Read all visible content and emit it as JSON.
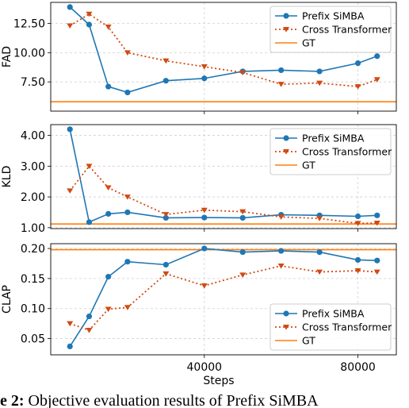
{
  "chart_data": {
    "type": "line",
    "x_label": "Steps",
    "x_ticks": [
      40000,
      80000
    ],
    "x_tick_labels": [
      "40000",
      "80000"
    ],
    "x_range": [
      0,
      90000
    ],
    "grid": true,
    "legend_placement": "top-right / bottom-right",
    "colors": {
      "prefix": "#1f77b4",
      "cross": "#d04a12",
      "gt": "#ff7f0e"
    },
    "panels": [
      {
        "id": "fad",
        "ylabel": "FAD",
        "ylim": [
          5.0,
          14.3
        ],
        "yticks": [
          7.5,
          10.0,
          12.5
        ],
        "ytick_labels": [
          "7.50",
          "10.00",
          "12.50"
        ],
        "legend_position": "top-right",
        "legend": [
          "Prefix SiMBA",
          "Cross Transformer",
          "GT"
        ],
        "series": [
          {
            "name": "Prefix SiMBA",
            "x": [
              5000,
              10000,
              15000,
              20000,
              30000,
              40000,
              50000,
              60000,
              70000,
              80000,
              85000
            ],
            "values": [
              13.9,
              12.4,
              7.1,
              6.6,
              7.6,
              7.8,
              8.4,
              8.5,
              8.4,
              9.1,
              9.7
            ]
          },
          {
            "name": "Cross Transformer",
            "x": [
              5000,
              10000,
              15000,
              20000,
              30000,
              40000,
              50000,
              60000,
              70000,
              80000,
              85000
            ],
            "values": [
              12.3,
              13.3,
              12.2,
              10.0,
              9.3,
              8.8,
              8.3,
              7.3,
              7.4,
              7.1,
              7.7
            ]
          }
        ],
        "gt": 5.8
      },
      {
        "id": "kld",
        "ylabel": "KLD",
        "ylim": [
          0.97,
          4.35
        ],
        "yticks": [
          1.0,
          2.0,
          3.0,
          4.0
        ],
        "ytick_labels": [
          "1.00",
          "2.00",
          "3.00",
          "4.00"
        ],
        "legend_position": "top-right",
        "legend": [
          "Prefix SiMBA",
          "Cross Transformer",
          "GT"
        ],
        "series": [
          {
            "name": "Prefix SiMBA",
            "x": [
              5000,
              10000,
              15000,
              20000,
              30000,
              40000,
              50000,
              60000,
              70000,
              80000,
              85000
            ],
            "values": [
              4.2,
              1.18,
              1.45,
              1.5,
              1.32,
              1.33,
              1.32,
              1.42,
              1.4,
              1.37,
              1.4
            ]
          },
          {
            "name": "Cross Transformer",
            "x": [
              5000,
              10000,
              15000,
              20000,
              30000,
              40000,
              50000,
              60000,
              70000,
              80000,
              85000
            ],
            "values": [
              2.2,
              3.0,
              2.3,
              2.0,
              1.43,
              1.57,
              1.52,
              1.35,
              1.3,
              1.14,
              1.15
            ]
          }
        ],
        "gt": 1.12
      },
      {
        "id": "clap",
        "ylabel": "CLAP",
        "ylim": [
          0.023,
          0.208
        ],
        "yticks": [
          0.05,
          0.1,
          0.15,
          0.2
        ],
        "ytick_labels": [
          "0.05",
          "0.10",
          "0.15",
          "0.20"
        ],
        "legend_position": "bottom-right",
        "legend": [
          "Prefix SiMBA",
          "Cross Transformer",
          "GT"
        ],
        "series": [
          {
            "name": "Prefix SiMBA",
            "x": [
              5000,
              10000,
              15000,
              20000,
              30000,
              40000,
              50000,
              60000,
              70000,
              80000,
              85000
            ],
            "values": [
              0.037,
              0.087,
              0.153,
              0.178,
              0.173,
              0.2,
              0.194,
              0.196,
              0.194,
              0.181,
              0.18
            ]
          },
          {
            "name": "Cross Transformer",
            "x": [
              5000,
              10000,
              15000,
              20000,
              30000,
              40000,
              50000,
              60000,
              70000,
              80000,
              85000
            ],
            "values": [
              0.075,
              0.064,
              0.099,
              0.102,
              0.158,
              0.138,
              0.156,
              0.171,
              0.161,
              0.163,
              0.161
            ]
          }
        ],
        "gt": 0.198
      }
    ]
  },
  "caption": {
    "label": "e 2:",
    "text": "Objective evaluation results of Prefix SiMBA"
  }
}
